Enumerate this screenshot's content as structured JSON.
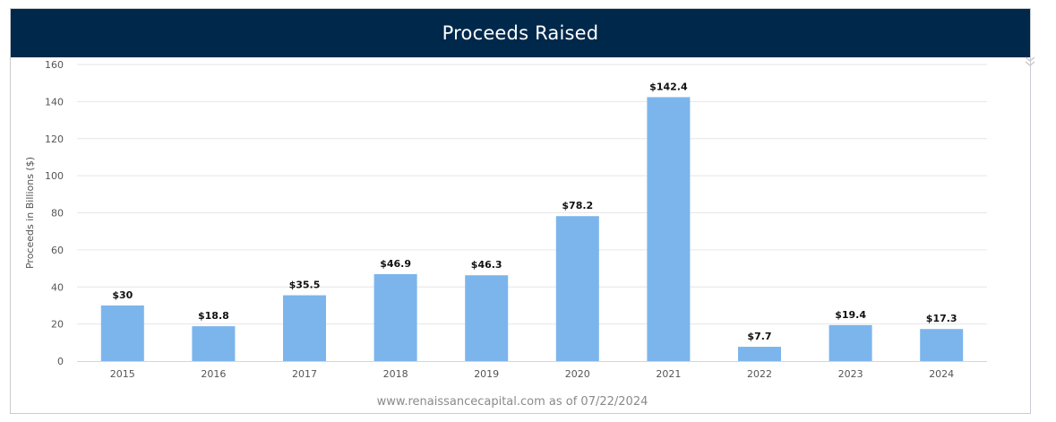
{
  "header": {
    "title": "Proceeds Raised"
  },
  "footer": {
    "source": "www.renaissancecapital.com as of 07/22/2024"
  },
  "menu": {
    "icon": "chevron-double-down-icon"
  },
  "colors": {
    "header_bg": "#00284b",
    "bar": "#7cb5ec",
    "grid": "#e6e6e6",
    "axis_text": "#555555",
    "footer_text": "#8a8a8a"
  },
  "chart_data": {
    "type": "bar",
    "title": "Proceeds Raised",
    "xlabel": "",
    "ylabel": "Proceeds in Billions ($)",
    "categories": [
      "2015",
      "2016",
      "2017",
      "2018",
      "2019",
      "2020",
      "2021",
      "2022",
      "2023",
      "2024"
    ],
    "values": [
      30,
      18.8,
      35.5,
      46.9,
      46.3,
      78.2,
      142.4,
      7.7,
      19.4,
      17.3
    ],
    "data_labels": [
      "$30",
      "$18.8",
      "$35.5",
      "$46.9",
      "$46.3",
      "$78.2",
      "$142.4",
      "$7.7",
      "$19.4",
      "$17.3"
    ],
    "yticks": [
      0,
      20,
      40,
      60,
      80,
      100,
      120,
      140,
      160
    ],
    "ylim": [
      0,
      160
    ],
    "grid": true,
    "legend": "none"
  }
}
